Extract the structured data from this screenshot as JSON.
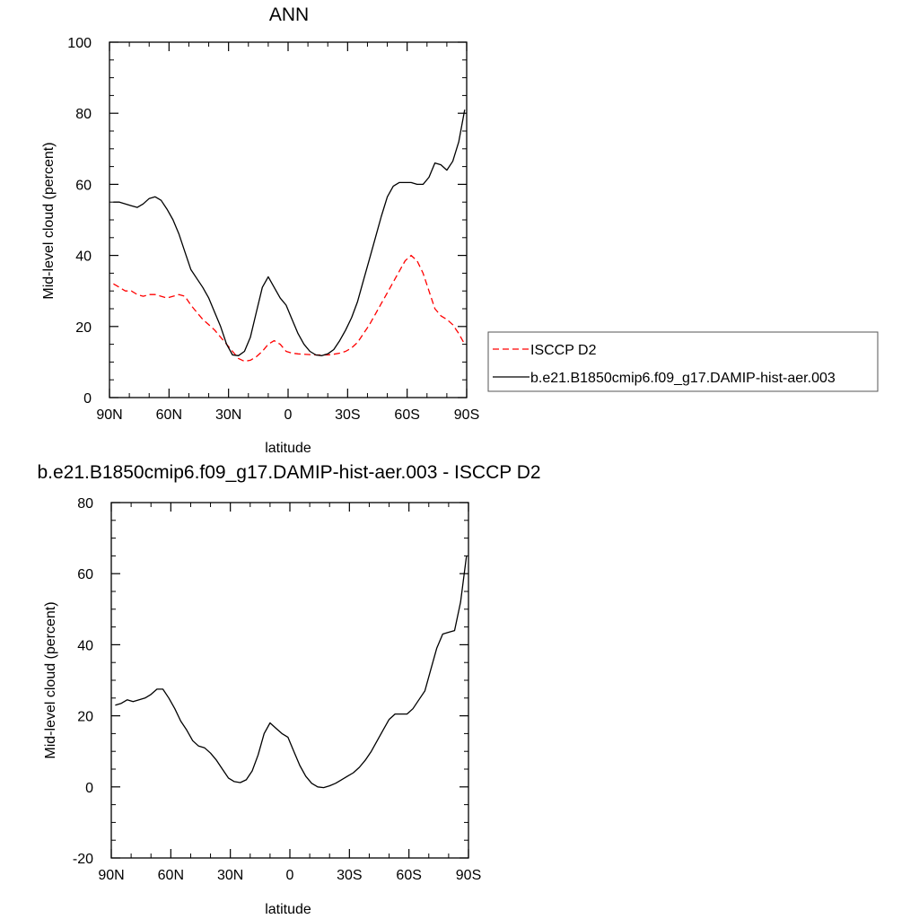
{
  "colors": {
    "model": "#000000",
    "obs": "#ff0000",
    "frame": "#000000",
    "legend_border": "#555555"
  },
  "chart_data": [
    {
      "type": "line",
      "title": "ANN",
      "xlabel": "latitude",
      "ylabel": "Mid-level cloud (percent)",
      "xlim": [
        90,
        -90
      ],
      "ylim": [
        0,
        100
      ],
      "xticks": [
        90,
        60,
        30,
        0,
        -30,
        -60,
        -90
      ],
      "xtick_labels": [
        "90N",
        "60N",
        "30N",
        "0",
        "30S",
        "60S",
        "90S"
      ],
      "yticks": [
        0,
        20,
        40,
        60,
        80,
        100
      ],
      "ytick_labels": [
        "0",
        "20",
        "40",
        "60",
        "80",
        "100"
      ],
      "grid": false,
      "legend_position": "right",
      "series": [
        {
          "name": "ISCCP D2",
          "style": "dashed",
          "color": "#ff0000",
          "x": [
            88,
            85,
            82,
            79,
            76,
            73,
            70,
            67,
            64,
            61,
            58,
            55,
            52,
            49,
            46,
            43,
            40,
            37,
            34,
            31,
            28,
            25,
            22,
            19,
            16,
            13,
            10,
            7,
            4,
            1,
            -2,
            -5,
            -8,
            -11,
            -14,
            -17,
            -20,
            -23,
            -26,
            -29,
            -32,
            -35,
            -38,
            -41,
            -44,
            -47,
            -50,
            -53,
            -56,
            -59,
            -62,
            -65,
            -68,
            -71,
            -74,
            -77,
            -80,
            -83,
            -86,
            -89
          ],
          "y": [
            32,
            31,
            30,
            30,
            29,
            28.5,
            29,
            29,
            28.5,
            28,
            28.5,
            29,
            28.5,
            26,
            24,
            22,
            20.5,
            19,
            17,
            15,
            13,
            11,
            10.2,
            10.5,
            11.5,
            13,
            15,
            16,
            15,
            13,
            12.5,
            12.3,
            12.2,
            12.1,
            12,
            12,
            12,
            12.2,
            12.5,
            13,
            14,
            15.5,
            18,
            20.5,
            23.5,
            26.5,
            29.5,
            32.5,
            35.5,
            38.5,
            40,
            38.5,
            35,
            30,
            25,
            23,
            22,
            20.5,
            18,
            15
          ]
        },
        {
          "name": "b.e21.B1850cmip6.f09_g17.DAMIP-hist-aer.003",
          "style": "solid",
          "color": "#000000",
          "x": [
            88,
            85,
            82,
            79,
            76,
            73,
            70,
            67,
            64,
            61,
            58,
            55,
            52,
            49,
            46,
            43,
            40,
            37,
            34,
            31,
            28,
            25,
            22,
            19,
            16,
            13,
            10,
            7,
            4,
            1,
            -2,
            -5,
            -8,
            -11,
            -14,
            -17,
            -20,
            -23,
            -26,
            -29,
            -32,
            -35,
            -38,
            -41,
            -44,
            -47,
            -50,
            -53,
            -56,
            -59,
            -62,
            -65,
            -68,
            -71,
            -74,
            -77,
            -80,
            -83,
            -86,
            -89
          ],
          "y": [
            55,
            55,
            54.5,
            54,
            53.5,
            54.5,
            56,
            56.5,
            55.5,
            53,
            50,
            46,
            41,
            36,
            33.5,
            31,
            28,
            24,
            20,
            15,
            12,
            11.8,
            13,
            17,
            24,
            31,
            34,
            31,
            28,
            26,
            22,
            18,
            15,
            13,
            12,
            11.8,
            12.3,
            13.5,
            16,
            19,
            22.5,
            27,
            33,
            39,
            45,
            51,
            56.5,
            59.5,
            60.5,
            60.5,
            60.5,
            60,
            60,
            62,
            66,
            65.5,
            64,
            66.5,
            72,
            81
          ]
        }
      ]
    },
    {
      "type": "line",
      "title": "b.e21.B1850cmip6.f09_g17.DAMIP-hist-aer.003 - ISCCP D2",
      "xlabel": "latitude",
      "ylabel": "Mid-level cloud (percent)",
      "xlim": [
        90,
        -90
      ],
      "ylim": [
        -20,
        80
      ],
      "xticks": [
        90,
        60,
        30,
        0,
        -30,
        -60,
        -90
      ],
      "xtick_labels": [
        "90N",
        "60N",
        "30N",
        "0",
        "30S",
        "60S",
        "90S"
      ],
      "yticks": [
        -20,
        0,
        20,
        40,
        60,
        80
      ],
      "ytick_labels": [
        "-20",
        "0",
        "20",
        "40",
        "60",
        "80"
      ],
      "grid": false,
      "series": [
        {
          "style": "solid",
          "color": "#000000",
          "x": [
            88,
            85,
            82,
            79,
            76,
            73,
            70,
            67,
            64,
            61,
            58,
            55,
            52,
            49,
            46,
            43,
            40,
            37,
            34,
            31,
            28,
            25,
            22,
            19,
            16,
            13,
            10,
            7,
            4,
            1,
            -2,
            -5,
            -8,
            -11,
            -14,
            -17,
            -20,
            -23,
            -26,
            -29,
            -32,
            -35,
            -38,
            -41,
            -44,
            -47,
            -50,
            -53,
            -56,
            -59,
            -62,
            -65,
            -68,
            -71,
            -74,
            -77,
            -80,
            -83,
            -86,
            -89
          ],
          "y": [
            23,
            23.5,
            24.5,
            24,
            24.5,
            25,
            26,
            27.5,
            27.5,
            25,
            22,
            18.5,
            16,
            13,
            11.5,
            11,
            9.5,
            7.5,
            5,
            2.5,
            1.5,
            1.2,
            2,
            4.5,
            9,
            15,
            18,
            16.5,
            15,
            14,
            10,
            6,
            3,
            1,
            0,
            -0.2,
            0.3,
            1,
            2,
            3,
            4,
            5.5,
            7.5,
            10,
            13,
            16,
            19,
            20.5,
            20.5,
            20.5,
            22,
            24.5,
            27,
            33,
            39,
            43,
            43.5,
            44,
            52,
            65
          ]
        }
      ]
    }
  ]
}
